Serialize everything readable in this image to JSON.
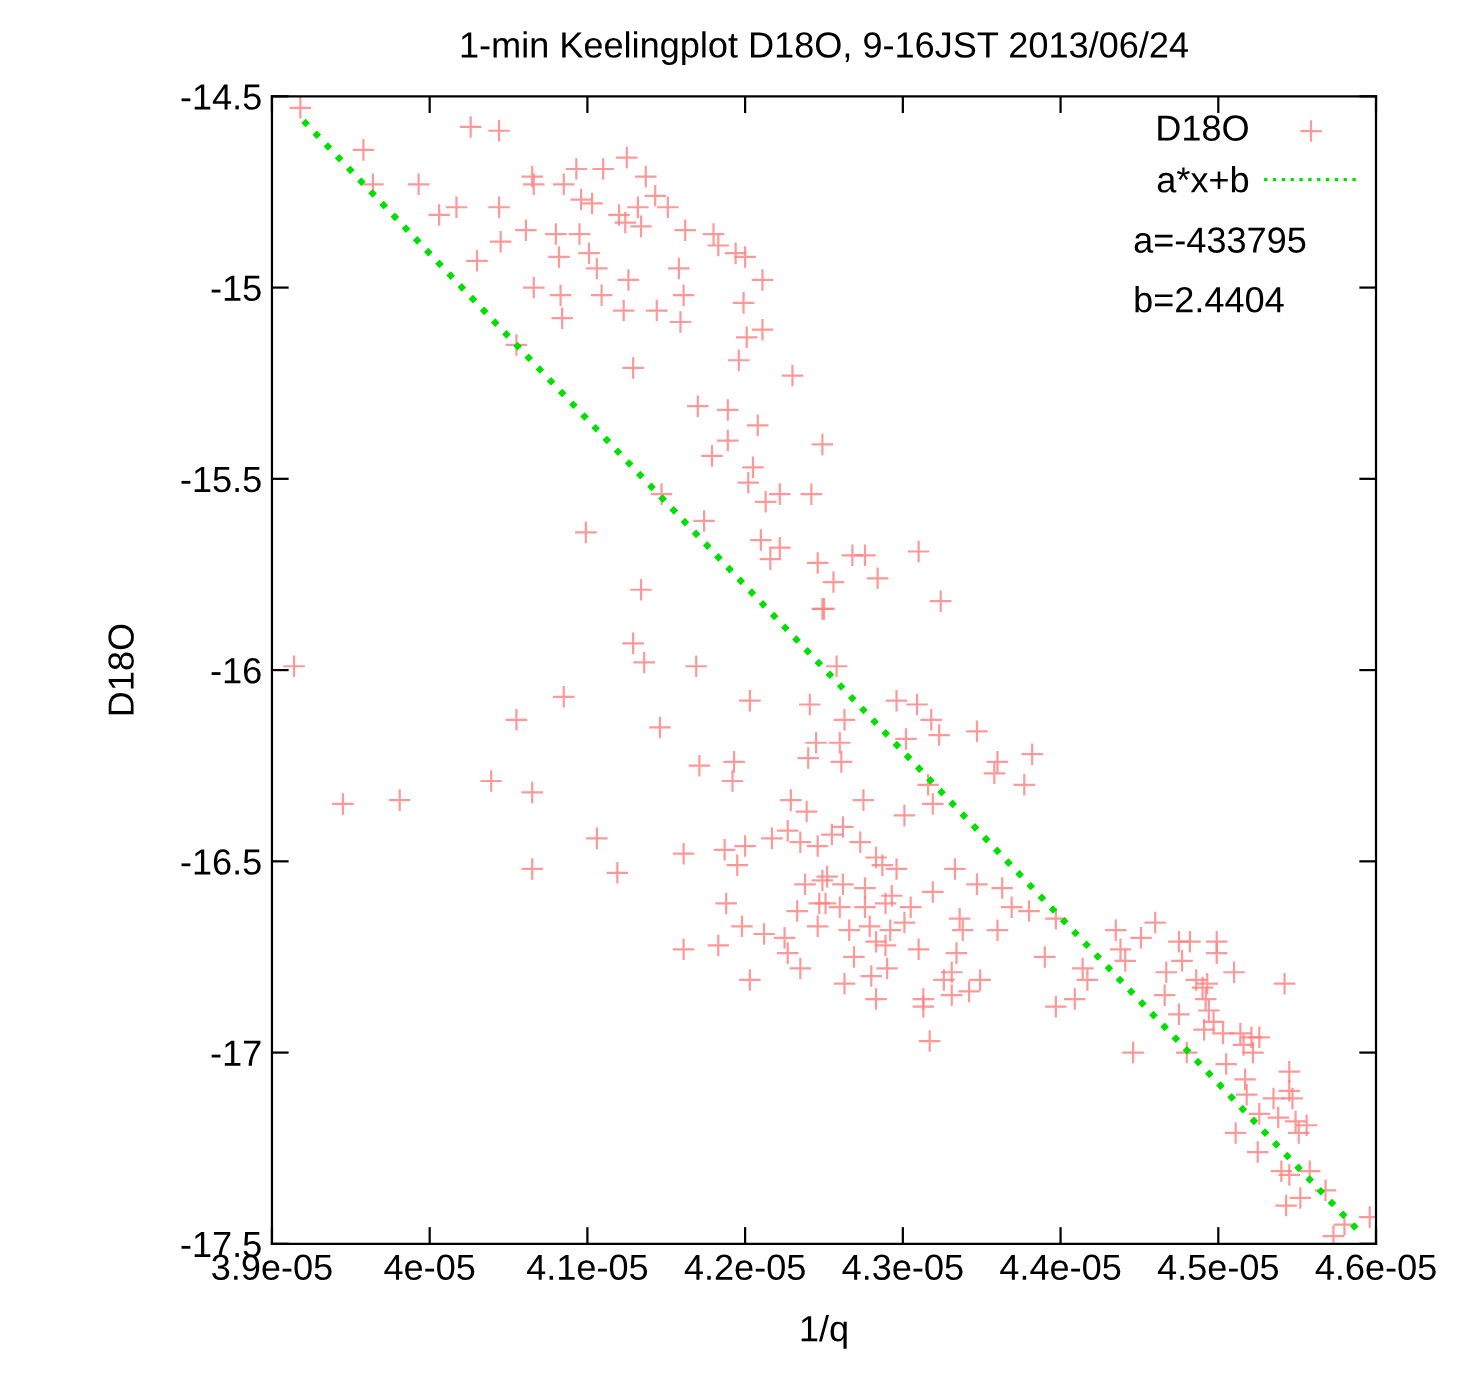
{
  "chart_data": {
    "type": "scatter",
    "title": "1-min Keelingplot D18O, 9-16JST 2013/06/24",
    "xlabel": "1/q",
    "ylabel": "D18O",
    "xlim": [
      3.9e-05,
      4.6e-05
    ],
    "ylim": [
      -17.5,
      -14.5
    ],
    "xticks": [
      3.9e-05,
      4e-05,
      4.1e-05,
      4.2e-05,
      4.3e-05,
      4.4e-05,
      4.5e-05,
      4.6e-05
    ],
    "yticks": [
      -14.5,
      -15,
      -15.5,
      -16,
      -16.5,
      -17,
      -17.5
    ],
    "grid": false,
    "legend": "top right",
    "annotations": [
      "a=-433795",
      "b=2.4404"
    ],
    "series": [
      {
        "name": "D18O",
        "marker": "cross",
        "color": "#ff8080",
        "x": [
          3.918e-05,
          4.026e-05,
          4.044e-05,
          3.958e-05,
          3.964e-05,
          3.993e-05,
          4.006e-05,
          4.017e-05,
          4.044e-05,
          4.065e-05,
          4.066e-05,
          4.085e-05,
          4.093e-05,
          4.11e-05,
          4.125e-05,
          4.137e-05,
          4.143e-05,
          4.096e-05,
          4.103e-05,
          4.12e-05,
          4.132e-05,
          4.151e-05,
          4.124e-05,
          4.134e-05,
          4.162e-05,
          4.18e-05,
          4.183e-05,
          4.194e-05,
          4.2e-05,
          4.211e-05,
          4.061e-05,
          4.08e-05,
          4.095e-05,
          4.045e-05,
          4.082e-05,
          4.101e-05,
          4.106e-05,
          4.03e-05,
          4.066e-05,
          4.083e-05,
          4.084e-05,
          4.109e-05,
          4.123e-05,
          4.126e-05,
          4.144e-05,
          4.158e-05,
          4.161e-05,
          4.159e-05,
          4.199e-05,
          4.211e-05,
          4.201e-05,
          4.196e-05,
          4.055e-05,
          4.129e-05,
          4.23e-05,
          4.17e-05,
          4.189e-05,
          4.208e-05,
          4.189e-05,
          4.179e-05,
          4.249e-05,
          4.205e-05,
          4.202e-05,
          4.213e-05,
          4.222e-05,
          4.242e-05,
          4.147e-05,
          4.174e-05,
          4.099e-05,
          4.21e-05,
          4.222e-05,
          4.216e-05,
          4.246e-05,
          4.134e-05,
          4.249e-05,
          4.129e-05,
          4.136e-05,
          4.169e-05,
          3.914e-05,
          4.085e-05,
          4.055e-05,
          4.146e-05,
          4.203e-05,
          4.241e-05,
          4.245e-05,
          4.24e-05,
          4.193e-05,
          4.192e-05,
          4.171e-05,
          4.039e-05,
          4.065e-05,
          3.945e-05,
          3.981e-05,
          4.229e-05,
          4.239e-05,
          4.227e-05,
          4.217e-05,
          4.235e-05,
          4.246e-05,
          4.106e-05,
          4.065e-05,
          4.119e-05,
          4.161e-05,
          4.187e-05,
          4.2e-05,
          4.195e-05,
          4.188e-05,
          4.198e-05,
          4.212e-05,
          4.225e-05,
          4.227e-05,
          4.235e-05,
          4.203e-05,
          4.161e-05,
          4.183e-05,
          4.233e-05,
          4.246e-05,
          4.238e-05,
          4.249e-05,
          4.251e-05,
          4.268e-05,
          4.276e-05,
          4.31e-05,
          4.256e-05,
          4.284e-05,
          4.25e-05,
          4.324e-05,
          4.258e-05,
          4.296e-05,
          4.309e-05,
          4.318e-05,
          4.323e-05,
          4.263e-05,
          4.26e-05,
          4.261e-05,
          4.302e-05,
          4.347e-05,
          4.36e-05,
          4.358e-05,
          4.382e-05,
          4.377e-05,
          4.275e-05,
          4.316e-05,
          4.319e-05,
          4.301e-05,
          4.262e-05,
          4.273e-05,
          4.255e-05,
          4.283e-05,
          4.287e-05,
          4.296e-05,
          4.333e-05,
          4.252e-05,
          4.262e-05,
          4.276e-05,
          4.293e-05,
          4.305e-05,
          4.319e-05,
          4.347e-05,
          4.247e-05,
          4.26e-05,
          4.276e-05,
          4.289e-05,
          4.363e-05,
          4.369e-05,
          4.38e-05,
          4.279e-05,
          4.301e-05,
          4.336e-05,
          4.338e-05,
          4.36e-05,
          4.266e-05,
          4.292e-05,
          4.283e-05,
          4.289e-05,
          4.31e-05,
          4.334e-05,
          4.397e-05,
          4.39e-05,
          4.269e-05,
          4.29e-05,
          4.28e-05,
          4.326e-05,
          4.331e-05,
          4.349e-05,
          4.342e-05,
          4.331e-05,
          4.263e-05,
          4.283e-05,
          4.313e-05,
          4.313e-05,
          4.317e-05,
          4.397e-05,
          4.409e-05,
          4.414e-05,
          4.417e-05,
          4.435e-05,
          4.438e-05,
          4.441e-05,
          4.451e-05,
          4.46e-05,
          4.446e-05,
          4.475e-05,
          4.482e-05,
          4.499e-05,
          4.477e-05,
          4.499e-05,
          4.467e-05,
          4.51e-05,
          4.486e-05,
          4.49e-05,
          4.493e-05,
          4.492e-05,
          4.466e-05,
          4.475e-05,
          4.494e-05,
          4.497e-05,
          4.491e-05,
          4.503e-05,
          4.514e-05,
          4.521e-05,
          4.516e-05,
          4.526e-05,
          4.522e-05,
          4.505e-05,
          4.48e-05,
          4.542e-05,
          4.517e-05,
          4.518e-05,
          4.526e-05,
          4.545e-05,
          4.535e-05,
          4.545e-05,
          4.547e-05,
          4.538e-05,
          4.549e-05,
          4.556e-05,
          4.551e-05,
          4.511e-05,
          4.525e-05,
          4.54e-05,
          4.545e-05,
          4.558e-05,
          4.552e-05,
          4.543e-05,
          4.568e-05,
          4.573e-05,
          4.58e-05,
          4.596e-05
        ],
        "values": [
          -14.53,
          -14.58,
          -14.59,
          -14.64,
          -14.73,
          -14.73,
          -14.81,
          -14.79,
          -14.79,
          -14.71,
          -14.73,
          -14.73,
          -14.69,
          -14.69,
          -14.66,
          -14.71,
          -14.76,
          -14.77,
          -14.78,
          -14.81,
          -14.79,
          -14.79,
          -14.83,
          -14.84,
          -14.85,
          -14.86,
          -14.89,
          -14.91,
          -14.92,
          -14.98,
          -14.85,
          -14.86,
          -14.86,
          -14.88,
          -14.92,
          -14.91,
          -14.95,
          -14.93,
          -15.0,
          -15.02,
          -15.08,
          -15.02,
          -15.06,
          -14.98,
          -15.06,
          -14.95,
          -15.02,
          -15.09,
          -15.04,
          -15.11,
          -15.13,
          -15.19,
          -15.15,
          -15.21,
          -15.23,
          -15.31,
          -15.32,
          -15.36,
          -15.4,
          -15.44,
          -15.41,
          -15.47,
          -15.51,
          -15.56,
          -15.54,
          -15.54,
          -15.54,
          -15.61,
          -15.64,
          -15.66,
          -15.68,
          -15.71,
          -15.72,
          -15.79,
          -15.84,
          -15.93,
          -15.98,
          -15.99,
          -15.99,
          -16.07,
          -16.13,
          -16.15,
          -16.08,
          -16.09,
          -16.19,
          -16.23,
          -16.24,
          -16.29,
          -16.25,
          -16.29,
          -16.32,
          -16.35,
          -16.34,
          -16.34,
          -16.37,
          -16.42,
          -16.44,
          -16.45,
          -16.46,
          -16.44,
          -16.52,
          -16.53,
          -16.48,
          -16.47,
          -16.46,
          -16.51,
          -16.61,
          -16.67,
          -16.69,
          -16.7,
          -16.74,
          -16.78,
          -16.81,
          -16.73,
          -16.72,
          -16.63,
          -16.67,
          -16.56,
          -16.55,
          -16.61,
          -15.7,
          -15.7,
          -15.69,
          -15.77,
          -15.76,
          -15.84,
          -15.82,
          -15.99,
          -16.08,
          -16.09,
          -16.13,
          -16.17,
          -16.13,
          -16.19,
          -16.24,
          -16.18,
          -16.16,
          -16.24,
          -16.27,
          -16.22,
          -16.3,
          -16.34,
          -16.3,
          -16.35,
          -16.38,
          -16.41,
          -16.45,
          -16.43,
          -16.49,
          -16.51,
          -16.52,
          -16.52,
          -16.54,
          -16.56,
          -16.57,
          -16.59,
          -16.62,
          -16.58,
          -16.56,
          -16.61,
          -16.62,
          -16.62,
          -16.61,
          -16.57,
          -16.62,
          -16.63,
          -16.67,
          -16.66,
          -16.65,
          -16.68,
          -16.68,
          -16.68,
          -16.68,
          -16.71,
          -16.72,
          -16.73,
          -16.74,
          -16.65,
          -16.75,
          -16.75,
          -16.78,
          -16.8,
          -16.81,
          -16.79,
          -16.81,
          -16.84,
          -16.85,
          -16.82,
          -16.86,
          -16.86,
          -16.88,
          -16.97,
          -16.88,
          -16.86,
          -16.78,
          -16.81,
          -16.68,
          -16.73,
          -16.76,
          -16.7,
          -16.66,
          -17.0,
          -16.71,
          -16.71,
          -16.71,
          -16.76,
          -16.74,
          -16.79,
          -16.79,
          -16.81,
          -16.83,
          -16.82,
          -16.86,
          -16.85,
          -16.9,
          -16.89,
          -16.92,
          -16.94,
          -16.95,
          -16.95,
          -16.96,
          -16.98,
          -16.96,
          -17.0,
          -17.03,
          -17.0,
          -16.82,
          -17.07,
          -17.11,
          -17.16,
          -17.05,
          -17.12,
          -17.1,
          -17.12,
          -17.17,
          -17.18,
          -17.19,
          -17.21,
          -17.21,
          -17.26,
          -17.31,
          -17.32,
          -17.31,
          -17.38,
          -17.4,
          -17.36,
          -17.48,
          -17.45,
          -17.43
        ]
      },
      {
        "name": "a*x+b",
        "type": "line",
        "line_style": "dotted",
        "color": "#00e000",
        "x": [
          3.92e-05,
          4.59e-05
        ],
        "values": [
          -14.564,
          -17.471
        ]
      }
    ]
  }
}
